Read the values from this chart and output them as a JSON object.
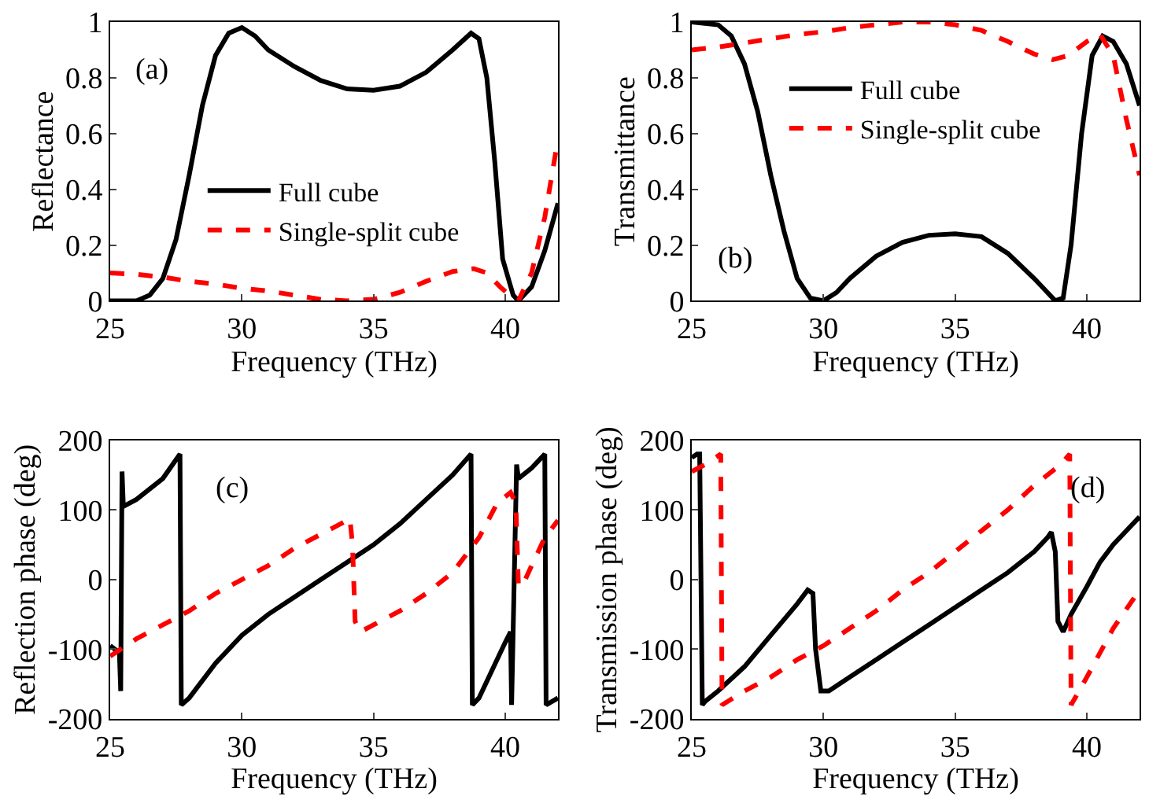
{
  "chart_data": [
    {
      "type": "line",
      "xlabel": "Frequency (THz)",
      "ylabel": "Reflectance",
      "xlim": [
        25,
        42
      ],
      "xticks": [
        25,
        30,
        35,
        40
      ],
      "ylim": [
        0,
        1
      ],
      "yticks": [
        0,
        0.2,
        0.4,
        0.6,
        0.8,
        1
      ],
      "legend": "bottom",
      "annotations": [
        "(a)"
      ],
      "series": [
        {
          "name": "Full cube",
          "color": "#000000",
          "line_style": "solid",
          "x": [
            25,
            26,
            26.5,
            27,
            27.5,
            28,
            28.5,
            29,
            29.5,
            30,
            30.5,
            31,
            32,
            33,
            34,
            35,
            36,
            37,
            38,
            38.7,
            39,
            39.3,
            39.6,
            39.9,
            40.3,
            40.5,
            41,
            41.5,
            42
          ],
          "values": [
            0,
            0,
            0.02,
            0.08,
            0.22,
            0.45,
            0.7,
            0.88,
            0.96,
            0.98,
            0.95,
            0.9,
            0.84,
            0.79,
            0.76,
            0.755,
            0.77,
            0.82,
            0.9,
            0.96,
            0.94,
            0.8,
            0.5,
            0.15,
            0.02,
            0,
            0.05,
            0.18,
            0.35
          ]
        },
        {
          "name": "Single-split cube",
          "color": "#ff0000",
          "line_style": "dashed",
          "x": [
            25,
            26,
            27,
            28,
            29,
            30,
            31,
            32,
            33,
            34,
            35,
            36,
            37,
            38,
            38.8,
            39.3,
            39.8,
            40.3,
            40.5,
            41,
            41.5,
            42
          ],
          "values": [
            0.1,
            0.095,
            0.085,
            0.07,
            0.06,
            0.045,
            0.035,
            0.02,
            0.005,
            0,
            0.005,
            0.03,
            0.07,
            0.105,
            0.115,
            0.1,
            0.05,
            0.01,
            0,
            0.1,
            0.3,
            0.58
          ]
        }
      ]
    },
    {
      "type": "line",
      "xlabel": "Frequency (THz)",
      "ylabel": "Transmittance",
      "xlim": [
        25,
        42
      ],
      "xticks": [
        25,
        30,
        35,
        40
      ],
      "ylim": [
        0,
        1
      ],
      "yticks": [
        0,
        0.2,
        0.4,
        0.6,
        0.8,
        1
      ],
      "legend": "top",
      "annotations": [
        "(b)"
      ],
      "series": [
        {
          "name": "Full cube",
          "color": "#000000",
          "line_style": "solid",
          "x": [
            25,
            26,
            26.5,
            27,
            27.5,
            28,
            28.5,
            29,
            29.5,
            30,
            30.5,
            31,
            32,
            33,
            34,
            35,
            36,
            37,
            38,
            38.5,
            38.8,
            39.1,
            39.4,
            39.8,
            40.2,
            40.6,
            41,
            41.5,
            42
          ],
          "values": [
            1,
            0.99,
            0.95,
            0.85,
            0.68,
            0.45,
            0.25,
            0.08,
            0.01,
            0,
            0.03,
            0.08,
            0.16,
            0.21,
            0.235,
            0.24,
            0.23,
            0.17,
            0.08,
            0.03,
            0,
            0.01,
            0.2,
            0.6,
            0.88,
            0.95,
            0.93,
            0.85,
            0.7
          ]
        },
        {
          "name": "Single-split cube",
          "color": "#ff0000",
          "line_style": "dashed",
          "x": [
            25,
            26,
            27,
            28,
            29,
            30,
            31,
            32,
            33,
            34,
            35,
            36,
            37,
            38,
            38.7,
            39.3,
            40,
            40.5,
            41,
            41.5,
            42
          ],
          "values": [
            0.9,
            0.91,
            0.925,
            0.94,
            0.955,
            0.965,
            0.98,
            0.99,
            1,
            1,
            0.99,
            0.97,
            0.93,
            0.885,
            0.865,
            0.88,
            0.93,
            0.955,
            0.88,
            0.65,
            0.45
          ]
        }
      ]
    },
    {
      "type": "line",
      "xlabel": "Frequency (THz)",
      "ylabel": "Reflection phase (deg)",
      "xlim": [
        25,
        42
      ],
      "xticks": [
        25,
        30,
        35,
        40
      ],
      "ylim": [
        -200,
        200
      ],
      "yticks": [
        -200,
        -100,
        0,
        100,
        200
      ],
      "annotations": [
        "(c)"
      ],
      "series": [
        {
          "color": "#000000",
          "line_style": "solid",
          "x": [
            25,
            25.35,
            25.4,
            25.45,
            25.5,
            26,
            27,
            27.65,
            27.7,
            28,
            29,
            30,
            31,
            32,
            33,
            34,
            35,
            36,
            37,
            38,
            38.7,
            38.75,
            39,
            39.5,
            40,
            40.2,
            40.24,
            40.43,
            40.5,
            41,
            41.5,
            41.55,
            42
          ],
          "values": [
            -95,
            -105,
            -160,
            155,
            105,
            115,
            145,
            180,
            -180,
            -170,
            -120,
            -80,
            -50,
            -25,
            0,
            25,
            50,
            80,
            115,
            150,
            180,
            -180,
            -170,
            -130,
            -90,
            -75,
            -180,
            165,
            145,
            160,
            180,
            -180,
            -170
          ]
        },
        {
          "color": "#ff0000",
          "line_style": "dashed",
          "x": [
            25,
            26,
            27,
            28,
            29,
            30,
            31,
            32,
            33,
            34,
            34.1,
            34.2,
            34.3,
            34.5,
            35,
            36,
            37,
            38,
            39,
            39.7,
            40.2,
            40.4,
            40.5,
            40.7,
            41,
            41.5,
            42
          ],
          "values": [
            -110,
            -85,
            -65,
            -45,
            -20,
            0,
            20,
            45,
            65,
            85,
            88,
            50,
            -60,
            -75,
            -65,
            -45,
            -20,
            10,
            60,
            110,
            125,
            110,
            -10,
            -5,
            20,
            60,
            85
          ]
        }
      ]
    },
    {
      "type": "line",
      "xlabel": "Frequency (THz)",
      "ylabel": "Transmission phase (deg)",
      "xlim": [
        25,
        42
      ],
      "xticks": [
        25,
        30,
        35,
        40
      ],
      "ylim": [
        -200,
        200
      ],
      "yticks": [
        -200,
        -100,
        0,
        100,
        200
      ],
      "annotations": [
        "(d)"
      ],
      "series": [
        {
          "color": "#000000",
          "line_style": "solid",
          "x": [
            25,
            25.2,
            25.3,
            25.4,
            25.5,
            26,
            27,
            28,
            29,
            29.4,
            29.6,
            29.7,
            29.9,
            30.2,
            31,
            32,
            33,
            34,
            35,
            36,
            37,
            38,
            38.5,
            38.65,
            38.8,
            38.9,
            39.1,
            39.4,
            40,
            40.5,
            41,
            41.5,
            42
          ],
          "values": [
            175,
            180,
            180,
            -180,
            -175,
            -160,
            -125,
            -80,
            -35,
            -15,
            -20,
            -100,
            -160,
            -160,
            -140,
            -115,
            -90,
            -65,
            -40,
            -15,
            10,
            40,
            60,
            68,
            40,
            -60,
            -75,
            -50,
            -10,
            25,
            50,
            70,
            90
          ]
        },
        {
          "color": "#ff0000",
          "line_style": "dashed",
          "x": [
            25,
            25.5,
            26.1,
            26.15,
            27,
            28,
            29,
            30,
            31,
            32,
            33,
            34,
            35,
            36,
            37,
            38,
            39,
            39.35,
            39.4,
            40,
            41,
            42
          ],
          "values": [
            155,
            165,
            180,
            -180,
            -160,
            -140,
            -115,
            -95,
            -70,
            -45,
            -15,
            10,
            40,
            70,
            100,
            135,
            165,
            180,
            -180,
            -140,
            -70,
            -15
          ]
        }
      ]
    }
  ]
}
